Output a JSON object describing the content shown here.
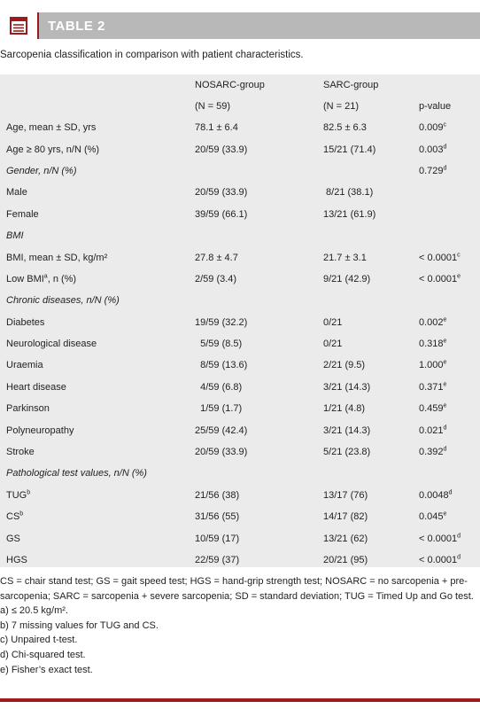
{
  "header": {
    "title": "TABLE 2",
    "icon": "table-icon"
  },
  "caption": "Sarcopenia classification in comparison with patient characteristics.",
  "columns": {
    "group1": "NOSARC-group",
    "group1_n": "(N = 59)",
    "group2": "SARC-group",
    "group2_n": "(N = 21)",
    "pvalue": "p-value"
  },
  "rows": [
    {
      "label": "Age, mean ± SD, yrs",
      "g1": "78.1 ± 6.4",
      "g2": "82.5 ± 6.3",
      "p": "0.009",
      "p_sup": "c"
    },
    {
      "label": "Age ≥ 80 yrs, n/N (%)",
      "g1": "20/59 (33.9)",
      "g2": "15/21 (71.4)",
      "p": "0.003",
      "p_sup": "d"
    },
    {
      "label": "Gender, n/N (%)",
      "section": true,
      "g1": "",
      "g2": "",
      "p": "0.729",
      "p_sup": "d"
    },
    {
      "label": "Male",
      "g1": "20/59 (33.9)",
      "g2": " 8/21 (38.1)",
      "p": "",
      "p_sup": ""
    },
    {
      "label": "Female",
      "g1": "39/59 (66.1)",
      "g2": "13/21 (61.9)",
      "p": "",
      "p_sup": ""
    },
    {
      "label": "BMI",
      "section": true,
      "g1": "",
      "g2": "",
      "p": "",
      "p_sup": ""
    },
    {
      "label": "BMI, mean ± SD, kg/m²",
      "g1": "27.8 ± 4.7",
      "g2": "21.7 ± 3.1",
      "p": "< 0.0001",
      "p_sup": "c"
    },
    {
      "label": "Low BMI",
      "label_sup": "a",
      "label_after": ", n (%)",
      "g1": "2/59 (3.4)",
      "g2": "9/21 (42.9)",
      "p": "< 0.0001",
      "p_sup": "e"
    },
    {
      "label": "Chronic diseases, n/N (%)",
      "section": true,
      "g1": "",
      "g2": "",
      "p": "",
      "p_sup": ""
    },
    {
      "label": "Diabetes",
      "g1": "19/59 (32.2)",
      "g2": "0/21",
      "p": "0.002",
      "p_sup": "e"
    },
    {
      "label": "Neurological disease",
      "g1": "  5/59 (8.5)",
      "g2": "0/21",
      "p": "0.318",
      "p_sup": "e"
    },
    {
      "label": "Uraemia",
      "g1": "  8/59 (13.6)",
      "g2": "2/21 (9.5)",
      "p": "1.000",
      "p_sup": "e"
    },
    {
      "label": "Heart disease",
      "g1": "  4/59 (6.8)",
      "g2": "3/21 (14.3)",
      "p": "0.371",
      "p_sup": "e"
    },
    {
      "label": "Parkinson",
      "g1": "  1/59 (1.7)",
      "g2": "1/21 (4.8)",
      "p": "0.459",
      "p_sup": "e"
    },
    {
      "label": "Polyneuropathy",
      "g1": "25/59 (42.4)",
      "g2": "3/21 (14.3)",
      "p": "0.021",
      "p_sup": "d"
    },
    {
      "label": "Stroke",
      "g1": "20/59 (33.9)",
      "g2": "5/21 (23.8)",
      "p": "0.392",
      "p_sup": "d"
    },
    {
      "label": "Pathological test values, n/N (%)",
      "section": true,
      "g1": "",
      "g2": "",
      "p": "",
      "p_sup": ""
    },
    {
      "label": "TUG",
      "label_sup": "b",
      "g1": "21/56 (38)",
      "g2": "13/17 (76)",
      "p": "0.0048",
      "p_sup": "d"
    },
    {
      "label": "CS",
      "label_sup": "b",
      "g1": "31/56 (55)",
      "g2": "14/17 (82)",
      "p": "0.045",
      "p_sup": "e"
    },
    {
      "label": "GS",
      "g1": "10/59 (17)",
      "g2": "13/21 (62)",
      "p": "< 0.0001",
      "p_sup": "d"
    },
    {
      "label": "HGS",
      "g1": "22/59 (37)",
      "g2": "20/21 (95)",
      "p": "< 0.0001",
      "p_sup": "d"
    }
  ],
  "footnotes": {
    "abbreviations": "CS = chair stand test; GS = gait speed test; HGS = hand-grip strength test; NOSARC = no sarcopenia + pre-sarcopenia; SARC = sarcopenia + severe sarcopenia; SD = standard deviation; TUG = Timed Up and Go test.",
    "a": "a) ≤ 20.5 kg/m².",
    "b": "b) 7 missing values for TUG and CS.",
    "c": "c) Unpaired t-test.",
    "d": "d) Chi-squared test.",
    "e": "e)  Fisher’s exact test."
  },
  "colors": {
    "accent": "#9e1b1b",
    "header_bg": "#b8b8b8",
    "table_bg": "#ebebeb"
  }
}
